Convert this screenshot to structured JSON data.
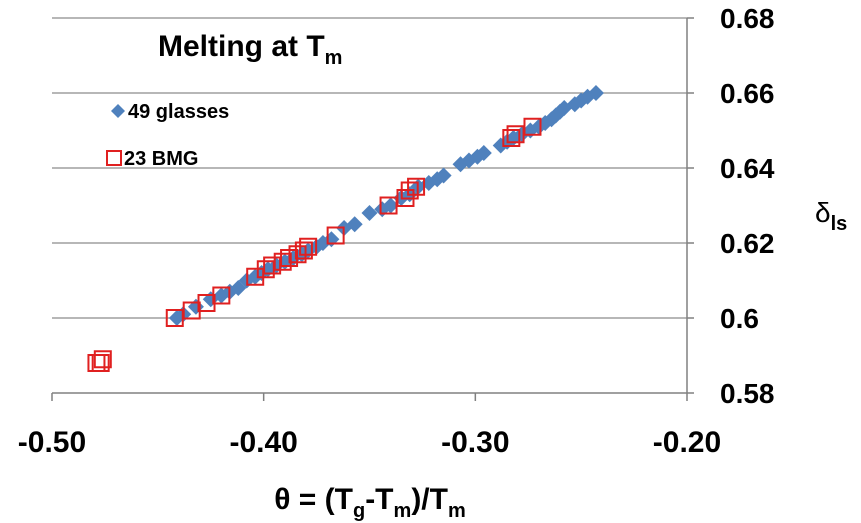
{
  "chart_data": {
    "type": "scatter",
    "title": {
      "main": "Melting at T",
      "sub": "m"
    },
    "xlabel": {
      "prefix": "θ = (T",
      "sub1": "g",
      "mid": "-T",
      "sub2": "m",
      "end": ")/T",
      "sub3": "m"
    },
    "ylabel": {
      "main": "δ",
      "sub": "ls"
    },
    "xlim": [
      -0.5,
      -0.2
    ],
    "ylim": [
      0.58,
      0.68
    ],
    "x_ticks": [
      -0.5,
      -0.4,
      -0.3,
      -0.2
    ],
    "x_tick_labels": [
      "-0.50",
      "-0.40",
      "-0.30",
      "-0.20"
    ],
    "y_ticks": [
      0.58,
      0.6,
      0.62,
      0.64,
      0.66,
      0.68
    ],
    "y_tick_labels": [
      "0.58",
      "0.6",
      "0.62",
      "0.64",
      "0.66",
      "0.68"
    ],
    "y_axis_position": "right",
    "grid": "horizontal",
    "legend_position": "top-left",
    "series": [
      {
        "name": "49 glasses",
        "marker": "diamond-filled",
        "color": "#4f81bd",
        "points": [
          [
            -0.441,
            0.6
          ],
          [
            -0.438,
            0.601
          ],
          [
            -0.432,
            0.603
          ],
          [
            -0.425,
            0.605
          ],
          [
            -0.42,
            0.606
          ],
          [
            -0.416,
            0.607
          ],
          [
            -0.412,
            0.608
          ],
          [
            -0.408,
            0.61
          ],
          [
            -0.404,
            0.611
          ],
          [
            -0.401,
            0.612
          ],
          [
            -0.398,
            0.613
          ],
          [
            -0.394,
            0.614
          ],
          [
            -0.39,
            0.615
          ],
          [
            -0.386,
            0.616
          ],
          [
            -0.382,
            0.617
          ],
          [
            -0.379,
            0.618
          ],
          [
            -0.375,
            0.619
          ],
          [
            -0.368,
            0.621
          ],
          [
            -0.362,
            0.624
          ],
          [
            -0.357,
            0.625
          ],
          [
            -0.35,
            0.628
          ],
          [
            -0.344,
            0.629
          ],
          [
            -0.34,
            0.63
          ],
          [
            -0.335,
            0.632
          ],
          [
            -0.331,
            0.633
          ],
          [
            -0.327,
            0.635
          ],
          [
            -0.322,
            0.636
          ],
          [
            -0.318,
            0.637
          ],
          [
            -0.315,
            0.638
          ],
          [
            -0.307,
            0.641
          ],
          [
            -0.303,
            0.642
          ],
          [
            -0.299,
            0.643
          ],
          [
            -0.296,
            0.644
          ],
          [
            -0.288,
            0.646
          ],
          [
            -0.282,
            0.648
          ],
          [
            -0.278,
            0.649
          ],
          [
            -0.274,
            0.65
          ],
          [
            -0.27,
            0.651
          ],
          [
            -0.267,
            0.652
          ],
          [
            -0.264,
            0.653
          ],
          [
            -0.262,
            0.654
          ],
          [
            -0.26,
            0.655
          ],
          [
            -0.258,
            0.656
          ],
          [
            -0.253,
            0.657
          ],
          [
            -0.25,
            0.658
          ],
          [
            -0.247,
            0.659
          ],
          [
            -0.243,
            0.66
          ],
          [
            -0.285,
            0.647
          ],
          [
            -0.372,
            0.62
          ]
        ]
      },
      {
        "name": "23 BMG",
        "marker": "square-open",
        "color": "#e02020",
        "points": [
          [
            -0.479,
            0.588
          ],
          [
            -0.477,
            0.588
          ],
          [
            -0.476,
            0.589
          ],
          [
            -0.442,
            0.6
          ],
          [
            -0.434,
            0.602
          ],
          [
            -0.427,
            0.604
          ],
          [
            -0.42,
            0.606
          ],
          [
            -0.404,
            0.611
          ],
          [
            -0.399,
            0.613
          ],
          [
            -0.396,
            0.614
          ],
          [
            -0.391,
            0.615
          ],
          [
            -0.388,
            0.616
          ],
          [
            -0.384,
            0.617
          ],
          [
            -0.381,
            0.618
          ],
          [
            -0.379,
            0.619
          ],
          [
            -0.366,
            0.622
          ],
          [
            -0.341,
            0.63
          ],
          [
            -0.333,
            0.632
          ],
          [
            -0.331,
            0.634
          ],
          [
            -0.328,
            0.635
          ],
          [
            -0.283,
            0.648
          ],
          [
            -0.281,
            0.649
          ],
          [
            -0.273,
            0.651
          ]
        ]
      }
    ]
  }
}
